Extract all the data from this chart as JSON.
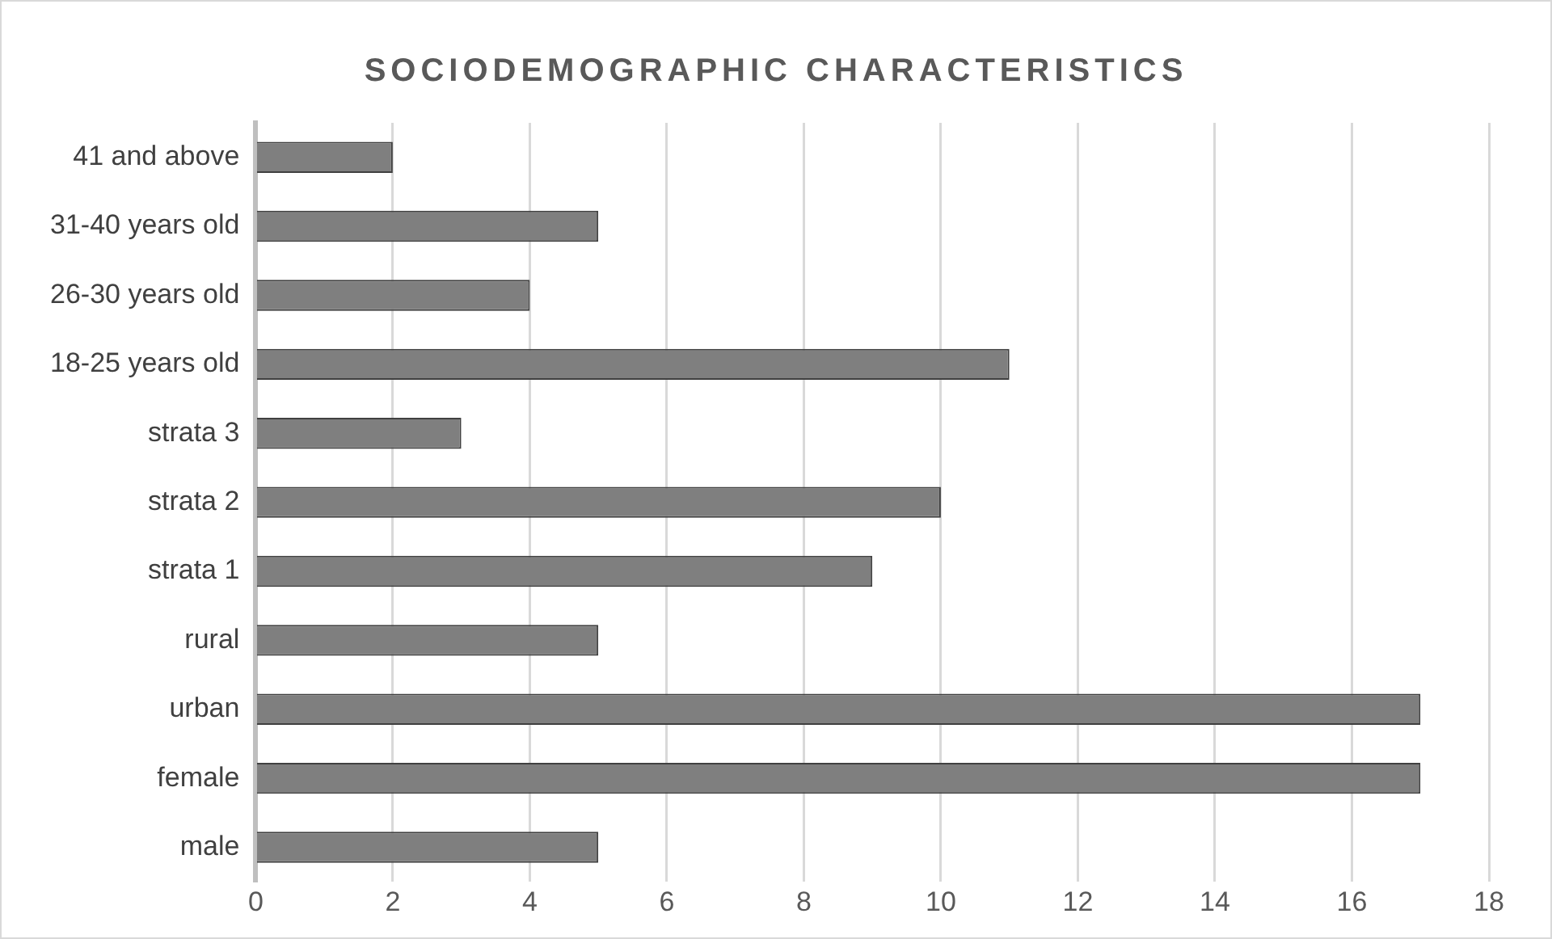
{
  "chart_data": {
    "type": "bar",
    "orientation": "horizontal",
    "title": "SOCIODEMOGRAPHIC CHARACTERISTICS",
    "categories": [
      "41 and above",
      "31-40 years old",
      "26-30 years old",
      "18-25 years old",
      "strata 3",
      "strata 2",
      "strata 1",
      "rural",
      "urban",
      "female",
      "male"
    ],
    "values": [
      2,
      5,
      4,
      11,
      3,
      10,
      9,
      5,
      17,
      17,
      5
    ],
    "color": "#7f7f7f",
    "xlim": [
      0,
      18
    ],
    "xticks": [
      0,
      2,
      4,
      6,
      8,
      10,
      12,
      14,
      16,
      18
    ],
    "grid": "x"
  }
}
